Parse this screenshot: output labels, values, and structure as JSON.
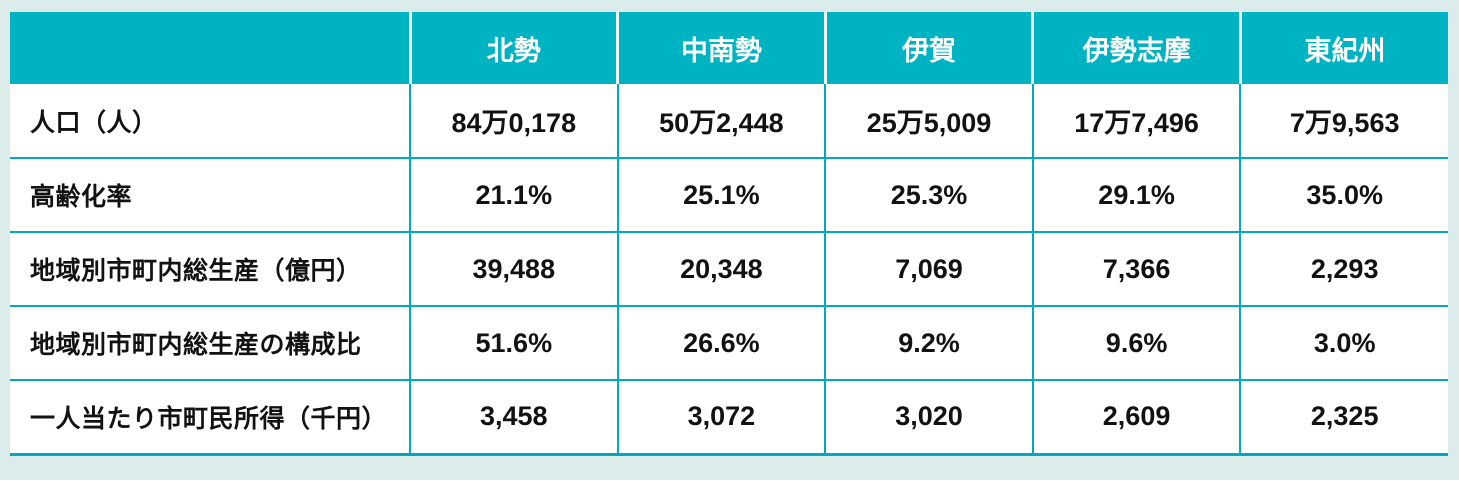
{
  "colors": {
    "page_background": "#dbecea",
    "header_background": "#00b3c2",
    "header_text": "#ffffff",
    "grid_line": "#00a9bc",
    "cell_text": "#121212"
  },
  "chart_data": {
    "type": "table",
    "title": "",
    "columns": [
      "北勢",
      "中南勢",
      "伊賀",
      "伊勢志摩",
      "東紀州"
    ],
    "rows": [
      {
        "label": "人口（人）",
        "values": [
          "84万0,178",
          "50万2,448",
          "25万5,009",
          "17万7,496",
          "7万9,563"
        ]
      },
      {
        "label": "高齢化率",
        "values": [
          "21.1%",
          "25.1%",
          "25.3%",
          "29.1%",
          "35.0%"
        ]
      },
      {
        "label": "地域別市町内総生産（億円）",
        "values": [
          "39,488",
          "20,348",
          "7,069",
          "7,366",
          "2,293"
        ]
      },
      {
        "label": "地域別市町内総生産の構成比",
        "values": [
          "51.6%",
          "26.6%",
          "9.2%",
          "9.6%",
          "3.0%"
        ]
      },
      {
        "label": "一人当たり市町民所得（千円）",
        "values": [
          "3,458",
          "3,072",
          "3,020",
          "2,609",
          "2,325"
        ]
      }
    ]
  }
}
